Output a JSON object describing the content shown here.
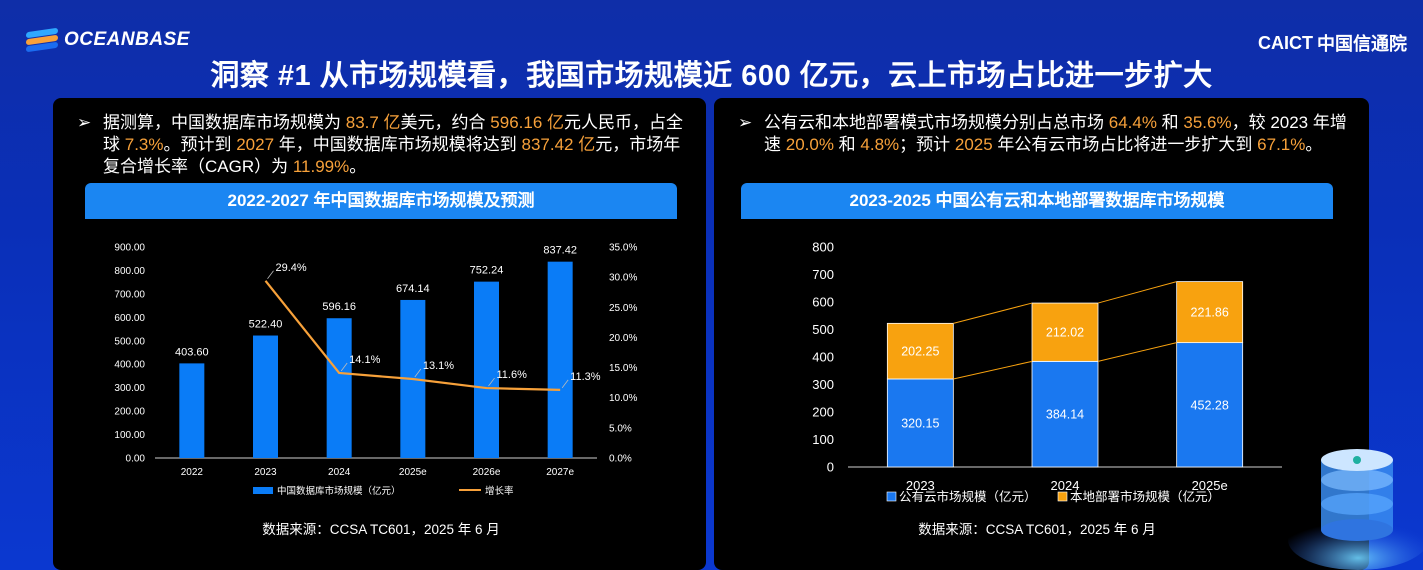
{
  "header": {
    "brand_left": "OCEANBASE",
    "brand_right_caict": "CAICT",
    "brand_right_cn": "中国信通院",
    "title": "洞察 #1 从市场规模看，我国市场规模近 600 亿元，云上市场占比进一步扩大"
  },
  "left_panel": {
    "bullet_arrow": "➢",
    "bullet_parts": {
      "p1": "据测算，中国数据库市场规模为 ",
      "h1": "83.7 亿",
      "p2": "美元，约合 ",
      "h2": "596.16 亿",
      "p3": "元人民币，占全球 ",
      "h3": "7.3%",
      "p4": "。预计到 ",
      "h4": "2027",
      "p5": " 年，中国数据库市场规模将达到 ",
      "h5": "837.42 亿",
      "p6": "元，市场年复合增长率（CAGR）为 ",
      "h6": "11.99%",
      "p7": "。"
    },
    "chart_title": "2022-2027 年中国数据库市场规模及预测",
    "source": "数据来源：CCSA TC601，2025 年 6 月"
  },
  "right_panel": {
    "bullet_arrow": "➢",
    "bullet_parts": {
      "p1": "公有云和本地部署模式市场规模分别占总市场 ",
      "h1": "64.4%",
      "p2": " 和 ",
      "h2": "35.6%",
      "p3": "，较 2023 年增速 ",
      "h3": "20.0%",
      "p4": " 和 ",
      "h4": "4.8%",
      "p5": "；预计 ",
      "h5": "2025",
      "p6": " 年公有云市场占比将进一步扩大到 ",
      "h6": "67.1%",
      "p7": "。"
    },
    "chart_title": "2023-2025 中国公有云和本地部署数据库市场规模",
    "source": "数据来源：CCSA TC601，2025 年 6 月"
  },
  "colors": {
    "bar_blue": "#0a7cf7",
    "line_orange": "#f7a13a",
    "stack_blue": "#1a78f0",
    "stack_orange": "#f8a20f",
    "highlight": "#f7a13a"
  },
  "chart_data": [
    {
      "type": "bar",
      "title": "2022-2027 年中国数据库市场规模及预测",
      "categories": [
        "2022",
        "2023",
        "2024",
        "2025e",
        "2026e",
        "2027e"
      ],
      "series": [
        {
          "name": "中国数据库市场规模（亿元）",
          "type": "bar",
          "axis": "left",
          "values": [
            403.6,
            522.4,
            596.16,
            674.14,
            752.24,
            837.42
          ],
          "labels": [
            "403.60",
            "522.40",
            "596.16",
            "674.14",
            "752.24",
            "837.42"
          ]
        },
        {
          "name": "增长率",
          "type": "line",
          "axis": "right",
          "values": [
            null,
            29.4,
            14.1,
            13.1,
            11.6,
            11.3
          ],
          "labels": [
            "",
            "29.4%",
            "14.1%",
            "13.1%",
            "11.6%",
            "11.3%"
          ]
        }
      ],
      "ylim": [
        0,
        900
      ],
      "y_ticks": [
        "0.00",
        "100.00",
        "200.00",
        "300.00",
        "400.00",
        "500.00",
        "600.00",
        "700.00",
        "800.00",
        "900.00"
      ],
      "y2lim": [
        0,
        35
      ],
      "y2_ticks": [
        "0.0%",
        "5.0%",
        "10.0%",
        "15.0%",
        "20.0%",
        "25.0%",
        "30.0%",
        "35.0%"
      ],
      "legend": "bottom"
    },
    {
      "type": "bar",
      "stacked": true,
      "title": "2023-2025 中国公有云和本地部署数据库市场规模",
      "categories": [
        "2023",
        "2024",
        "2025e"
      ],
      "series": [
        {
          "name": "公有云市场规模（亿元）",
          "values": [
            320.15,
            384.14,
            452.28
          ],
          "labels": [
            "320.15",
            "384.14",
            "452.28"
          ]
        },
        {
          "name": "本地部署市场规模（亿元）",
          "values": [
            202.25,
            212.02,
            221.86
          ],
          "labels": [
            "202.25",
            "212.02",
            "221.86"
          ]
        }
      ],
      "ylim": [
        0,
        800
      ],
      "y_ticks": [
        "0",
        "100",
        "200",
        "300",
        "400",
        "500",
        "600",
        "700",
        "800"
      ],
      "legend": "bottom"
    }
  ]
}
